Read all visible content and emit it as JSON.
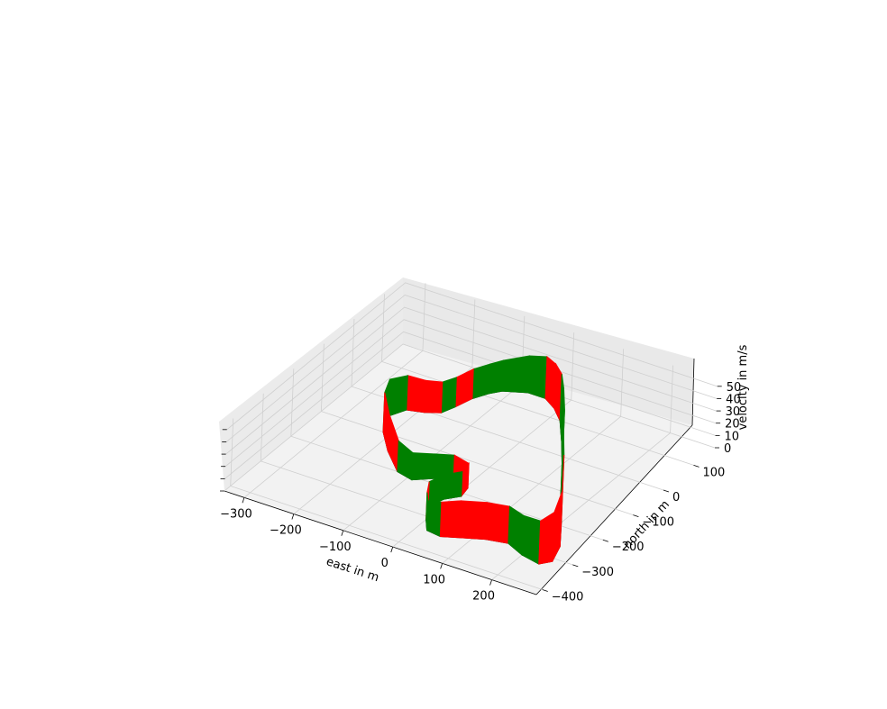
{
  "chart_data": {
    "type": "3d-ribbon",
    "title": "",
    "xlabel": "east in m",
    "ylabel": "north in m",
    "zlabel": "velocity in m/s",
    "xlim": [
      -340,
      290
    ],
    "ylim": [
      -420,
      170
    ],
    "zlim": [
      0,
      55
    ],
    "x_ticks": [
      -300,
      -200,
      -100,
      0,
      100,
      200
    ],
    "y_ticks": [
      -400,
      -300,
      -200,
      -100,
      0,
      100
    ],
    "z_ticks": [
      0,
      10,
      20,
      30,
      40,
      50
    ],
    "x_tick_labels": [
      "−300",
      "−200",
      "−100",
      "0",
      "100",
      "200"
    ],
    "y_tick_labels": [
      "−400",
      "−300",
      "−200",
      "−100",
      "0",
      "100"
    ],
    "z_tick_labels": [
      "0",
      "10",
      "20",
      "30",
      "40",
      "50"
    ],
    "grid": true,
    "colors": {
      "accelerate": "#008000",
      "brake": "#ff0000",
      "track": "#000000",
      "pane": "#f2f2f2",
      "grid": "#cfcfcf"
    },
    "track": {
      "points": [
        [
          -115,
          130,
          25
        ],
        [
          -75,
          150,
          30
        ],
        [
          -40,
          150,
          34
        ],
        [
          -10,
          130,
          36
        ],
        [
          20,
          100,
          38
        ],
        [
          60,
          40,
          44
        ],
        [
          110,
          -40,
          50
        ],
        [
          150,
          -110,
          55
        ],
        [
          200,
          -190,
          55
        ],
        [
          240,
          -260,
          45
        ],
        [
          255,
          -310,
          40
        ],
        [
          240,
          -330,
          35
        ],
        [
          200,
          -320,
          32
        ],
        [
          160,
          -300,
          30
        ],
        [
          120,
          -310,
          30
        ],
        [
          80,
          -330,
          30
        ],
        [
          50,
          -345,
          28
        ],
        [
          20,
          -340,
          24
        ],
        [
          0,
          -310,
          22
        ],
        [
          -20,
          -270,
          20
        ],
        [
          -10,
          -235,
          20
        ],
        [
          10,
          -210,
          20
        ],
        [
          5,
          -180,
          20
        ],
        [
          -30,
          -170,
          20
        ],
        [
          -60,
          -185,
          20
        ],
        [
          -90,
          -210,
          22
        ],
        [
          -125,
          -200,
          25
        ],
        [
          -175,
          -150,
          30
        ],
        [
          -215,
          -100,
          32
        ],
        [
          -235,
          -50,
          30
        ],
        [
          -220,
          -15,
          28
        ],
        [
          -190,
          -5,
          26
        ],
        [
          -165,
          10,
          25
        ],
        [
          -155,
          40,
          24
        ],
        [
          -145,
          80,
          24
        ],
        [
          -130,
          110,
          24
        ]
      ],
      "phase": [
        "accelerate",
        "accelerate",
        "brake",
        "brake",
        "accelerate",
        "accelerate",
        "accelerate",
        "accelerate",
        "brake",
        "brake",
        "brake",
        "accelerate",
        "accelerate",
        "brake",
        "brake",
        "brake",
        "accelerate",
        "accelerate",
        "brake",
        "accelerate",
        "accelerate",
        "brake",
        "brake",
        "accelerate",
        "accelerate",
        "accelerate",
        "brake",
        "brake",
        "accelerate",
        "accelerate",
        "brake",
        "brake",
        "accelerate",
        "brake",
        "accelerate",
        "accelerate"
      ]
    }
  }
}
